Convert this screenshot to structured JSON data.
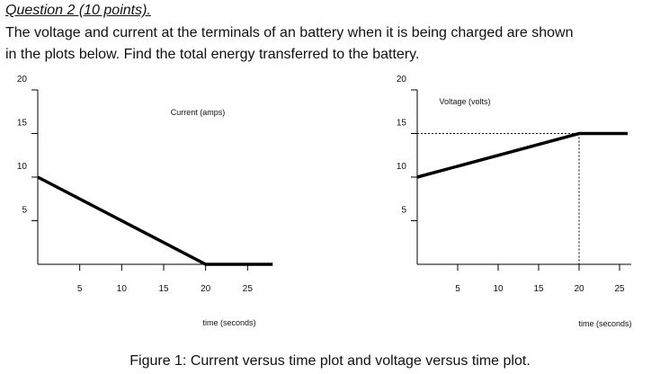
{
  "question": {
    "heading": "Question 2 (10 points).",
    "body_lines": [
      "The voltage and current at the terminals of an battery when it is being charged are shown",
      "in the plots below. Find the total energy transferred to the battery."
    ]
  },
  "chart_data": [
    {
      "type": "line",
      "title": "Current (amps)",
      "xlabel": "time (seconds)",
      "ylabel": "",
      "xlim": [
        0,
        30
      ],
      "ylim": [
        0,
        20
      ],
      "xticks": [
        5,
        10,
        15,
        20,
        25
      ],
      "yticks": [
        5,
        10,
        15,
        20
      ],
      "grid": false,
      "series": [
        {
          "x": [
            0,
            20,
            28
          ],
          "y": [
            10,
            0,
            0
          ]
        }
      ]
    },
    {
      "type": "line",
      "title": "Voltage (volts)",
      "xlabel": "time (seconds)",
      "ylabel": "",
      "xlim": [
        0,
        30
      ],
      "ylim": [
        0,
        20
      ],
      "xticks": [
        5,
        10,
        15,
        20,
        25
      ],
      "yticks": [
        5,
        10,
        15,
        20
      ],
      "grid": false,
      "series": [
        {
          "x": [
            0,
            20,
            26
          ],
          "y": [
            10,
            15,
            15
          ]
        }
      ],
      "reference_lines": [
        {
          "from": [
            0,
            15
          ],
          "to": [
            20,
            15
          ]
        },
        {
          "from": [
            20,
            15
          ],
          "to": [
            20,
            0
          ]
        }
      ]
    }
  ],
  "caption": "Figure 1: Current versus time plot and voltage versus time plot."
}
